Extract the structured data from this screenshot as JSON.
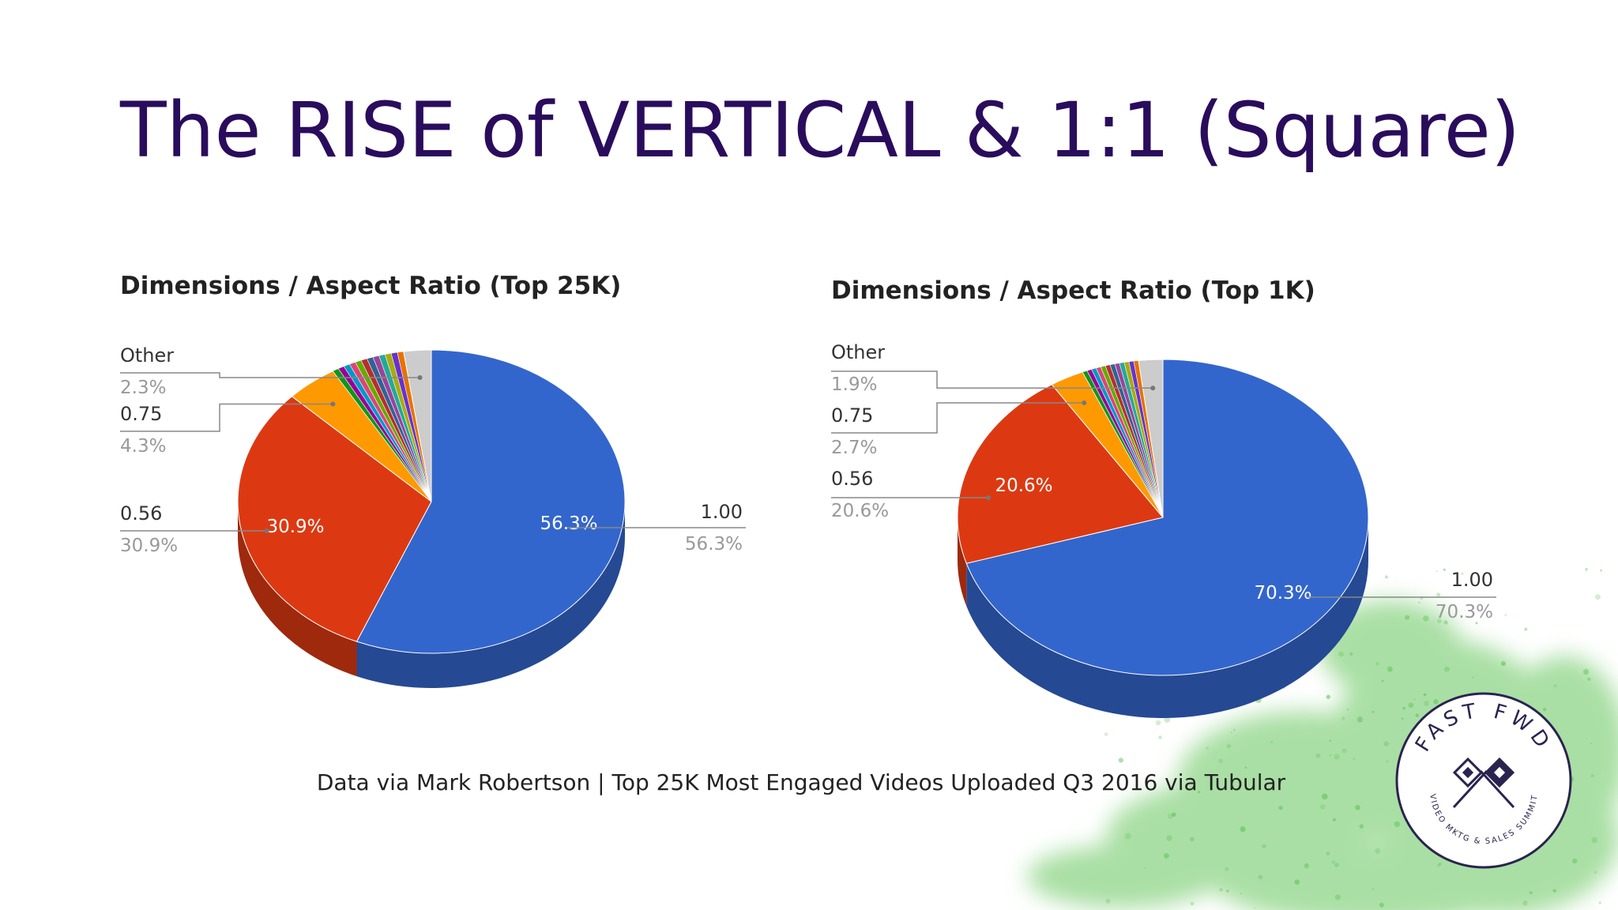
{
  "slide": {
    "title": "The RISE of VERTICAL & 1:1 (Square)",
    "credit": "Data via Mark Robertson | Top 25K Most Engaged Videos Uploaded Q3 2016 via Tubular",
    "logo_top": "FAST FWD",
    "logo_bottom": "VIDEO MKTG & SALES SUMMIT"
  },
  "colors": {
    "title": "#2a0c5c",
    "slice_100": "#3366cc",
    "slice_056": "#dc3912",
    "slice_075": "#ff9900",
    "other_slices": [
      "#109618",
      "#990099",
      "#0099c6",
      "#dd4477",
      "#66aa00",
      "#b82e2e",
      "#316395",
      "#994499",
      "#22aa99",
      "#aaaa11",
      "#6633cc",
      "#e67300"
    ],
    "slice_other": "#cccccc",
    "splash": "#63c55a"
  },
  "chart_data": [
    {
      "type": "pie",
      "title": "Dimensions / Aspect Ratio (Top 25K)",
      "slices": [
        {
          "label": "1.00",
          "value": 56.3,
          "display": "56.3%",
          "color": "#3366cc"
        },
        {
          "label": "0.56",
          "value": 30.9,
          "display": "30.9%",
          "color": "#dc3912"
        },
        {
          "label": "0.75",
          "value": 4.3,
          "display": "4.3%",
          "color": "#ff9900"
        },
        {
          "label": "Other",
          "value": 2.3,
          "display": "2.3%",
          "color": "#cccccc"
        }
      ],
      "inside_labels": [
        "56.3%",
        "30.9%"
      ],
      "unlabeled_small_slices": 6.2
    },
    {
      "type": "pie",
      "title": "Dimensions / Aspect Ratio (Top 1K)",
      "slices": [
        {
          "label": "1.00",
          "value": 70.3,
          "display": "70.3%",
          "color": "#3366cc"
        },
        {
          "label": "0.56",
          "value": 20.6,
          "display": "20.6%",
          "color": "#dc3912"
        },
        {
          "label": "0.75",
          "value": 2.7,
          "display": "2.7%",
          "color": "#ff9900"
        },
        {
          "label": "Other",
          "value": 1.9,
          "display": "1.9%",
          "color": "#cccccc"
        }
      ],
      "inside_labels": [
        "70.3%",
        "20.6%"
      ],
      "unlabeled_small_slices": 4.5
    }
  ]
}
